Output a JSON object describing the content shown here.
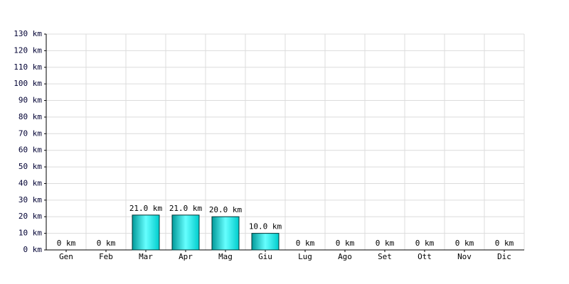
{
  "chart_data": {
    "type": "bar",
    "categories": [
      "Gen",
      "Feb",
      "Mar",
      "Apr",
      "Mag",
      "Giu",
      "Lug",
      "Ago",
      "Set",
      "Ott",
      "Nov",
      "Dic"
    ],
    "values": [
      0,
      0,
      21,
      21,
      20,
      10,
      0,
      0,
      0,
      0,
      0,
      0
    ],
    "value_labels": [
      "0 km",
      "0 km",
      "21.0 km",
      "21.0 km",
      "20.0 km",
      "10.0 km",
      "0 km",
      "0 km",
      "0 km",
      "0 km",
      "0 km",
      "0 km"
    ],
    "color": "#00cccc",
    "ylim": [
      0,
      130
    ],
    "yticks": [
      {
        "value": 0,
        "label": "0 km"
      },
      {
        "value": 10,
        "label": "10 km"
      },
      {
        "value": 20,
        "label": "20 km"
      },
      {
        "value": 30,
        "label": "30 km"
      },
      {
        "value": 40,
        "label": "40 km"
      },
      {
        "value": 50,
        "label": "50 km"
      },
      {
        "value": 60,
        "label": "60 km"
      },
      {
        "value": 70,
        "label": "70 km"
      },
      {
        "value": 80,
        "label": "80 km"
      },
      {
        "value": 90,
        "label": "90 km"
      },
      {
        "value": 100,
        "label": "100 km"
      },
      {
        "value": 110,
        "label": "110 km"
      },
      {
        "value": 120,
        "label": "120 km"
      },
      {
        "value": 130,
        "label": "130 km"
      }
    ],
    "grid": true
  }
}
